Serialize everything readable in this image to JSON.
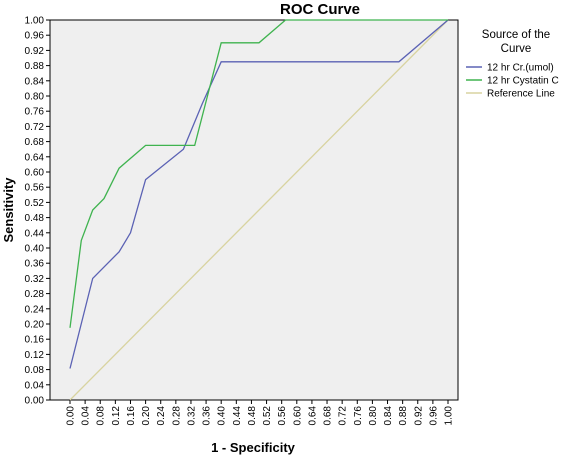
{
  "chart_data": {
    "type": "line",
    "title": "ROC Curve",
    "xlabel": "1 - Specificity",
    "ylabel": "Sensitivity",
    "xlim": [
      0,
      1
    ],
    "ylim": [
      0,
      1
    ],
    "x_ticks": [
      "0.00",
      "0.04",
      "0.08",
      "0.12",
      "0.16",
      "0.20",
      "0.24",
      "0.28",
      "0.32",
      "0.36",
      "0.40",
      "0.44",
      "0.48",
      "0.52",
      "0.56",
      "0.60",
      "0.64",
      "0.68",
      "0.72",
      "0.76",
      "0.80",
      "0.84",
      "0.88",
      "0.92",
      "0.96",
      "1.00"
    ],
    "y_ticks": [
      "0.00",
      "0.04",
      "0.08",
      "0.12",
      "0.16",
      "0.20",
      "0.24",
      "0.28",
      "0.32",
      "0.36",
      "0.40",
      "0.44",
      "0.48",
      "0.52",
      "0.56",
      "0.60",
      "0.64",
      "0.68",
      "0.72",
      "0.76",
      "0.80",
      "0.84",
      "0.88",
      "0.92",
      "0.96",
      "1.00"
    ],
    "grid": false,
    "legend": {
      "title_line1": "Source of the",
      "title_line2": "Curve",
      "position": "right"
    },
    "series": [
      {
        "name": "12 hr Cr.(umol)",
        "color": "#5b62b4",
        "x": [
          0.0,
          0.06,
          0.13,
          0.16,
          0.2,
          0.3,
          0.35,
          0.4,
          0.87,
          1.0
        ],
        "y": [
          0.083,
          0.32,
          0.39,
          0.44,
          0.58,
          0.66,
          0.78,
          0.89,
          0.89,
          1.0
        ]
      },
      {
        "name": "12 hr Cystatin C",
        "color": "#3fb34f",
        "x": [
          0.0,
          0.03,
          0.06,
          0.09,
          0.13,
          0.2,
          0.33,
          0.4,
          0.5,
          0.57,
          1.0
        ],
        "y": [
          0.19,
          0.42,
          0.5,
          0.53,
          0.61,
          0.67,
          0.67,
          0.94,
          0.94,
          1.0,
          1.0
        ]
      },
      {
        "name": "Reference Line",
        "color": "#d8d3a0",
        "x": [
          0,
          1
        ],
        "y": [
          0,
          1
        ]
      }
    ]
  }
}
